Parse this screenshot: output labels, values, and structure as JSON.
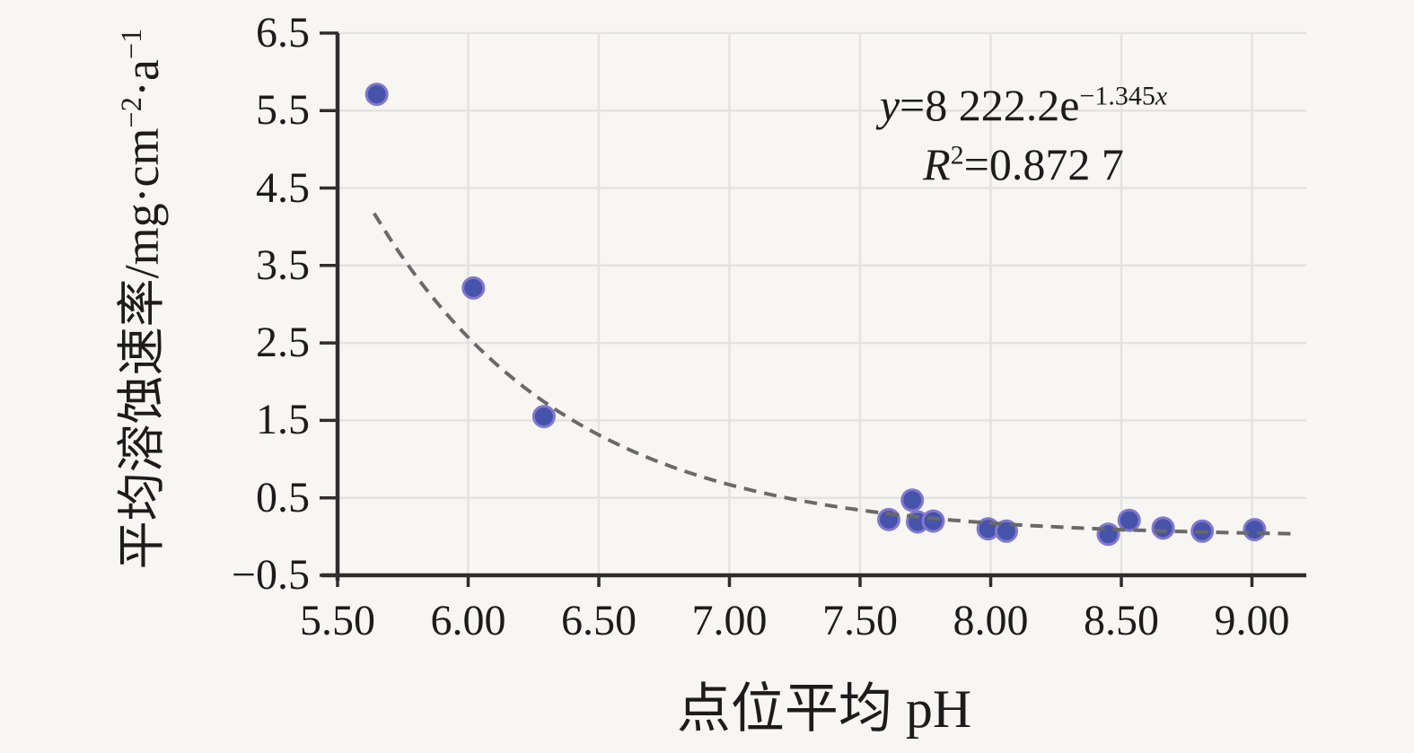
{
  "figure": {
    "background": "#f7f6f3",
    "equation": {
      "lhs": "y",
      "body": "=8 222.2e",
      "exp_coef": "−1.345",
      "exp_var": "x"
    },
    "r2": {
      "lhs": "R",
      "sup": "2",
      "body": "=0.872 7"
    },
    "x_axis_title": "点位平均 pH",
    "y_axis_title": {
      "main": "平均溶蚀速率/mg·cm",
      "sup1": "−2",
      "mid": "·a",
      "sup2": "−1"
    }
  },
  "chart_data": {
    "type": "scatter",
    "title": "",
    "xlabel": "点位平均 pH",
    "ylabel": "平均溶蚀速率/mg·cm⁻²·a⁻¹",
    "xlim": [
      5.5,
      9.21
    ],
    "ylim": [
      -0.5,
      6.5
    ],
    "grid": true,
    "x_ticks": [
      "5.50",
      "6.00",
      "6.50",
      "7.00",
      "7.50",
      "8.00",
      "8.50",
      "9.00"
    ],
    "x_tick_values": [
      5.5,
      6.0,
      6.5,
      7.0,
      7.5,
      8.0,
      8.5,
      9.0
    ],
    "y_ticks": [
      "−0.5",
      "0.5",
      "1.5",
      "2.5",
      "3.5",
      "4.5",
      "5.5",
      "6.5"
    ],
    "y_tick_values": [
      -0.5,
      0.5,
      1.5,
      2.5,
      3.5,
      4.5,
      5.5,
      6.5
    ],
    "series": [
      {
        "name": "平均溶蚀速率",
        "points": [
          [
            5.65,
            5.71
          ],
          [
            6.02,
            3.21
          ],
          [
            6.29,
            1.55
          ],
          [
            7.61,
            0.22
          ],
          [
            7.7,
            0.47
          ],
          [
            7.72,
            0.19
          ],
          [
            7.78,
            0.2
          ],
          [
            7.99,
            0.1
          ],
          [
            8.06,
            0.07
          ],
          [
            8.45,
            0.03
          ],
          [
            8.53,
            0.21
          ],
          [
            8.66,
            0.11
          ],
          [
            8.81,
            0.07
          ],
          [
            9.01,
            0.09
          ]
        ]
      }
    ],
    "trendline": {
      "type": "exponential",
      "label": "y = 8 222.2·e^(−1.345x)",
      "a": 8222.2,
      "b": -1.345,
      "r2": 0.8727,
      "x_start": 5.64,
      "x_end": 9.17,
      "dashed": true
    },
    "colors": {
      "marker_fill": "#4553ab",
      "marker_edge": "#8278cc",
      "trendline": "#696969",
      "axis": "#2e2e2e",
      "grid": "#e3e3e1",
      "text": "#1c1c1c"
    }
  }
}
